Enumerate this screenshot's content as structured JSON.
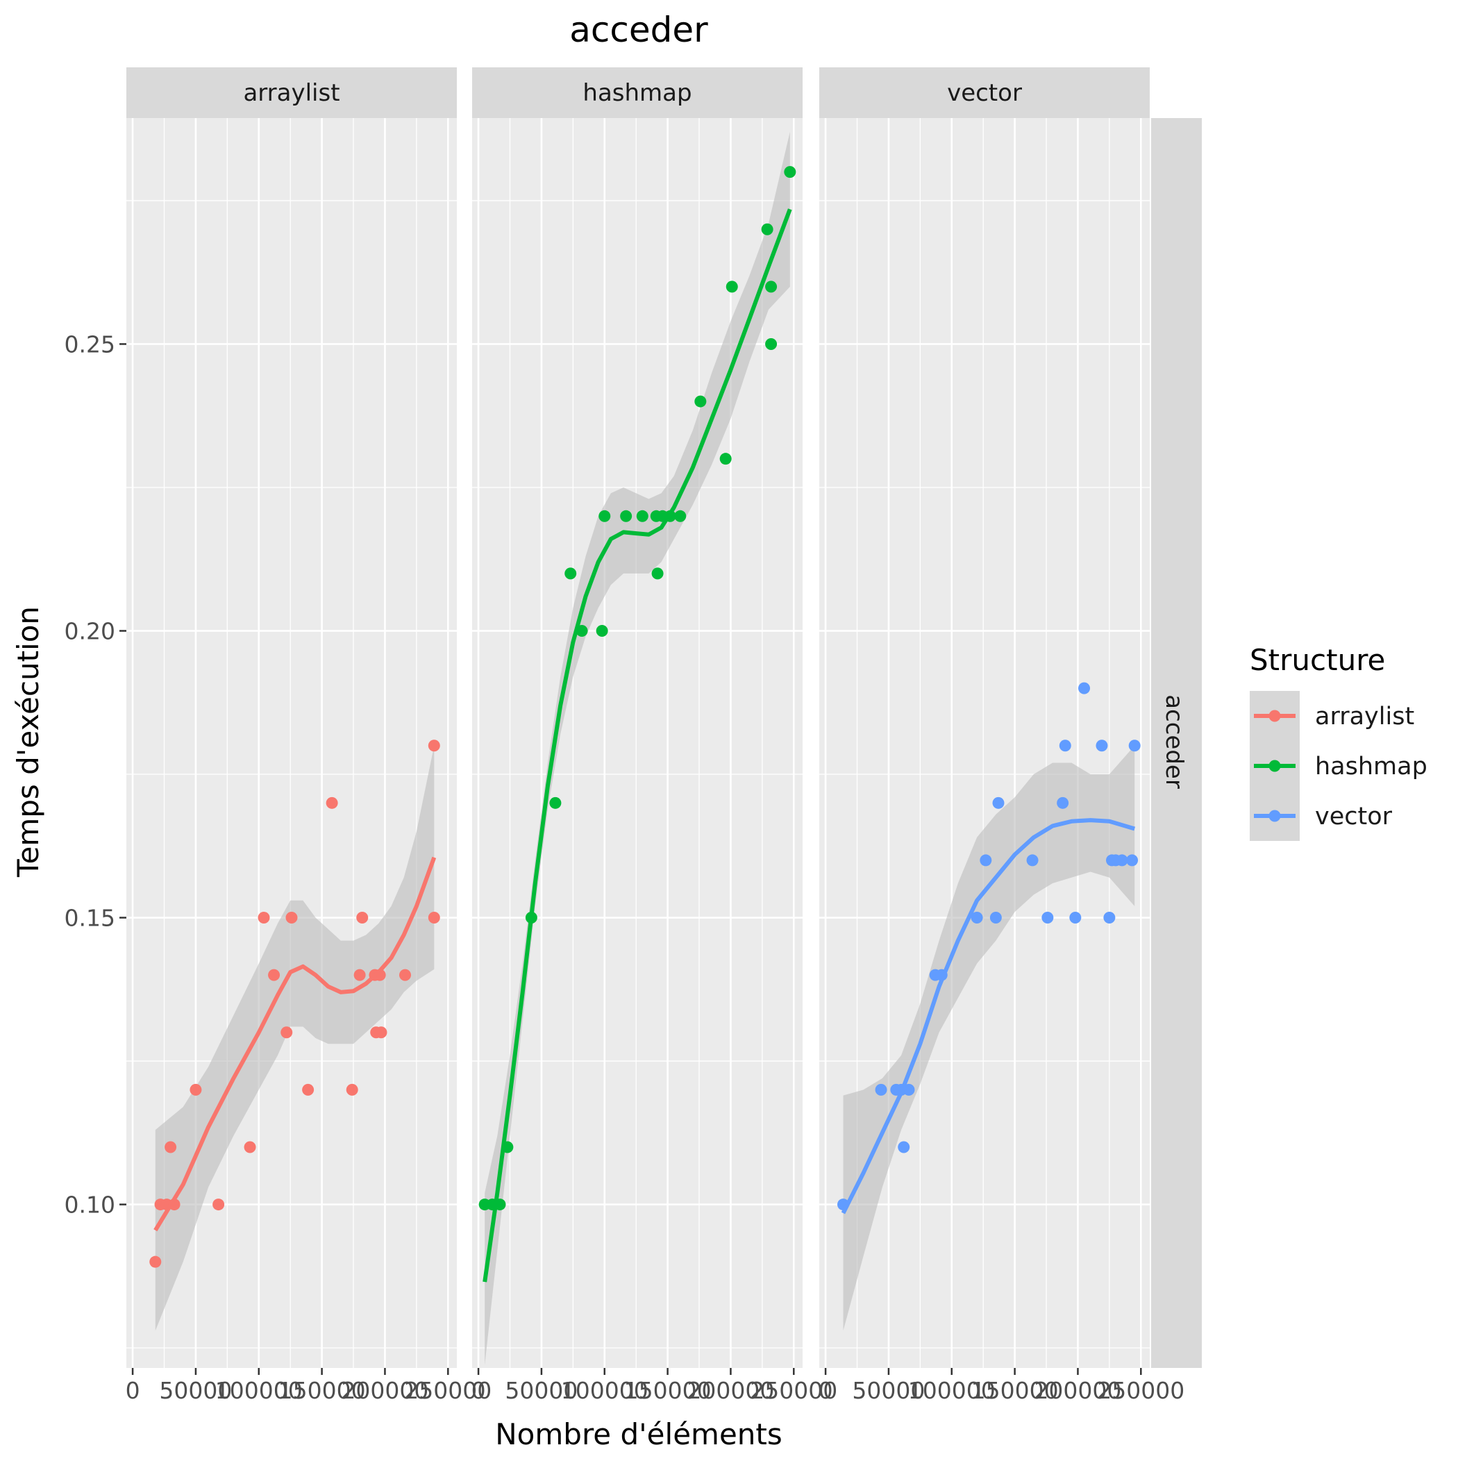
{
  "chart_data": {
    "type": "scatter",
    "title": "acceder",
    "xlabel": "Nombre d'éléments",
    "ylabel": "Temps d'exécution",
    "row_strip": "acceder",
    "xlim": [
      -5000,
      257000
    ],
    "ylim": [
      0.0715,
      0.2894
    ],
    "x_ticks": [
      0,
      50000,
      100000,
      150000,
      200000,
      250000
    ],
    "x_tick_labels": [
      "0",
      "50000",
      "100000",
      "150000",
      "200000",
      "250000"
    ],
    "y_ticks": [
      0.1,
      0.15,
      0.2,
      0.25
    ],
    "y_tick_labels": [
      "0.10",
      "0.15",
      "0.20",
      "0.25"
    ],
    "grid": true,
    "legend": {
      "title": "Structure",
      "position": "right",
      "entries": [
        {
          "label": "arraylist",
          "color": "#F8766D"
        },
        {
          "label": "hashmap",
          "color": "#00BA38"
        },
        {
          "label": "vector",
          "color": "#619CFF"
        }
      ]
    },
    "colors": {
      "panel_bg": "#EBEBEB",
      "strip_bg": "#D9D9D9",
      "grid": "#FFFFFF",
      "ribbon": "#BEBEBE",
      "text": "#1A1A1A",
      "tick_text": "#4D4D4D"
    },
    "panels": [
      {
        "name": "arraylist",
        "color": "#F8766D",
        "points": [
          [
            18000,
            0.09
          ],
          [
            22000,
            0.1
          ],
          [
            27000,
            0.1
          ],
          [
            30000,
            0.11
          ],
          [
            33000,
            0.1
          ],
          [
            50000,
            0.12
          ],
          [
            68000,
            0.1
          ],
          [
            93000,
            0.11
          ],
          [
            104000,
            0.15
          ],
          [
            112000,
            0.14
          ],
          [
            122000,
            0.13
          ],
          [
            126000,
            0.15
          ],
          [
            139000,
            0.12
          ],
          [
            158000,
            0.17
          ],
          [
            174000,
            0.12
          ],
          [
            180000,
            0.14
          ],
          [
            182000,
            0.15
          ],
          [
            192000,
            0.14
          ],
          [
            193000,
            0.13
          ],
          [
            196000,
            0.14
          ],
          [
            197000,
            0.13
          ],
          [
            216000,
            0.14
          ],
          [
            239000,
            0.18
          ],
          [
            239000,
            0.15
          ]
        ],
        "smooth": [
          [
            18000,
            0.0955
          ],
          [
            40000,
            0.1035
          ],
          [
            60000,
            0.1135
          ],
          [
            80000,
            0.122
          ],
          [
            100000,
            0.13
          ],
          [
            115000,
            0.1365
          ],
          [
            125000,
            0.1405
          ],
          [
            135000,
            0.1415
          ],
          [
            145000,
            0.14
          ],
          [
            155000,
            0.138
          ],
          [
            165000,
            0.137
          ],
          [
            175000,
            0.1372
          ],
          [
            185000,
            0.1385
          ],
          [
            195000,
            0.1405
          ],
          [
            205000,
            0.143
          ],
          [
            215000,
            0.147
          ],
          [
            225000,
            0.152
          ],
          [
            239000,
            0.1605
          ]
        ],
        "band_upper": [
          [
            18000,
            0.113
          ],
          [
            40000,
            0.117
          ],
          [
            60000,
            0.124
          ],
          [
            80000,
            0.133
          ],
          [
            100000,
            0.142
          ],
          [
            115000,
            0.149
          ],
          [
            125000,
            0.153
          ],
          [
            135000,
            0.153
          ],
          [
            145000,
            0.15
          ],
          [
            155000,
            0.148
          ],
          [
            165000,
            0.146
          ],
          [
            175000,
            0.146
          ],
          [
            185000,
            0.147
          ],
          [
            195000,
            0.149
          ],
          [
            205000,
            0.152
          ],
          [
            215000,
            0.157
          ],
          [
            225000,
            0.165
          ],
          [
            239000,
            0.18
          ]
        ],
        "band_lower": [
          [
            18000,
            0.078
          ],
          [
            40000,
            0.09
          ],
          [
            60000,
            0.103
          ],
          [
            80000,
            0.112
          ],
          [
            100000,
            0.12
          ],
          [
            115000,
            0.126
          ],
          [
            125000,
            0.131
          ],
          [
            135000,
            0.131
          ],
          [
            145000,
            0.129
          ],
          [
            155000,
            0.128
          ],
          [
            165000,
            0.128
          ],
          [
            175000,
            0.128
          ],
          [
            185000,
            0.13
          ],
          [
            195000,
            0.132
          ],
          [
            205000,
            0.134
          ],
          [
            215000,
            0.137
          ],
          [
            225000,
            0.139
          ],
          [
            239000,
            0.141
          ]
        ]
      },
      {
        "name": "hashmap",
        "color": "#00BA38",
        "points": [
          [
            5000,
            0.1
          ],
          [
            11000,
            0.1
          ],
          [
            17000,
            0.1
          ],
          [
            23000,
            0.11
          ],
          [
            42000,
            0.15
          ],
          [
            61000,
            0.17
          ],
          [
            73000,
            0.21
          ],
          [
            82000,
            0.2
          ],
          [
            98000,
            0.2
          ],
          [
            100000,
            0.22
          ],
          [
            117000,
            0.22
          ],
          [
            130000,
            0.22
          ],
          [
            141000,
            0.22
          ],
          [
            142000,
            0.21
          ],
          [
            146000,
            0.22
          ],
          [
            152000,
            0.22
          ],
          [
            160000,
            0.22
          ],
          [
            176000,
            0.24
          ],
          [
            196000,
            0.23
          ],
          [
            201000,
            0.26
          ],
          [
            229000,
            0.27
          ],
          [
            232000,
            0.26
          ],
          [
            232000,
            0.25
          ],
          [
            247000,
            0.28
          ]
        ],
        "smooth": [
          [
            5000,
            0.0865
          ],
          [
            15000,
            0.102
          ],
          [
            25000,
            0.119
          ],
          [
            35000,
            0.137
          ],
          [
            45000,
            0.156
          ],
          [
            55000,
            0.173
          ],
          [
            65000,
            0.187
          ],
          [
            75000,
            0.198
          ],
          [
            85000,
            0.206
          ],
          [
            95000,
            0.212
          ],
          [
            105000,
            0.216
          ],
          [
            115000,
            0.2172
          ],
          [
            125000,
            0.217
          ],
          [
            135000,
            0.2168
          ],
          [
            145000,
            0.218
          ],
          [
            155000,
            0.2215
          ],
          [
            170000,
            0.2285
          ],
          [
            185000,
            0.237
          ],
          [
            200000,
            0.2455
          ],
          [
            215000,
            0.2545
          ],
          [
            230000,
            0.2635
          ],
          [
            247000,
            0.2735
          ]
        ],
        "band_upper": [
          [
            5000,
            0.102
          ],
          [
            15000,
            0.112
          ],
          [
            25000,
            0.126
          ],
          [
            35000,
            0.142
          ],
          [
            45000,
            0.16
          ],
          [
            55000,
            0.177
          ],
          [
            65000,
            0.192
          ],
          [
            75000,
            0.204
          ],
          [
            85000,
            0.213
          ],
          [
            95000,
            0.22
          ],
          [
            105000,
            0.224
          ],
          [
            115000,
            0.225
          ],
          [
            125000,
            0.224
          ],
          [
            135000,
            0.223
          ],
          [
            145000,
            0.224
          ],
          [
            155000,
            0.227
          ],
          [
            170000,
            0.235
          ],
          [
            185000,
            0.245
          ],
          [
            200000,
            0.254
          ],
          [
            215000,
            0.262
          ],
          [
            230000,
            0.271
          ],
          [
            247000,
            0.287
          ]
        ],
        "band_lower": [
          [
            5000,
            0.072
          ],
          [
            15000,
            0.092
          ],
          [
            25000,
            0.112
          ],
          [
            35000,
            0.132
          ],
          [
            45000,
            0.152
          ],
          [
            55000,
            0.169
          ],
          [
            65000,
            0.182
          ],
          [
            75000,
            0.192
          ],
          [
            85000,
            0.199
          ],
          [
            95000,
            0.204
          ],
          [
            105000,
            0.208
          ],
          [
            115000,
            0.21
          ],
          [
            125000,
            0.21
          ],
          [
            135000,
            0.21
          ],
          [
            145000,
            0.212
          ],
          [
            155000,
            0.216
          ],
          [
            170000,
            0.222
          ],
          [
            185000,
            0.229
          ],
          [
            200000,
            0.237
          ],
          [
            215000,
            0.247
          ],
          [
            230000,
            0.256
          ],
          [
            247000,
            0.26
          ]
        ]
      },
      {
        "name": "vector",
        "color": "#619CFF",
        "points": [
          [
            14000,
            0.1
          ],
          [
            44000,
            0.12
          ],
          [
            56000,
            0.12
          ],
          [
            60000,
            0.12
          ],
          [
            62000,
            0.11
          ],
          [
            66000,
            0.12
          ],
          [
            87000,
            0.14
          ],
          [
            92000,
            0.14
          ],
          [
            120000,
            0.15
          ],
          [
            127000,
            0.16
          ],
          [
            135000,
            0.15
          ],
          [
            137000,
            0.17
          ],
          [
            164000,
            0.16
          ],
          [
            176000,
            0.15
          ],
          [
            188000,
            0.17
          ],
          [
            190000,
            0.18
          ],
          [
            198000,
            0.15
          ],
          [
            205000,
            0.19
          ],
          [
            219000,
            0.18
          ],
          [
            225000,
            0.15
          ],
          [
            227000,
            0.16
          ],
          [
            230000,
            0.16
          ],
          [
            235000,
            0.16
          ],
          [
            243000,
            0.16
          ],
          [
            245000,
            0.18
          ]
        ],
        "smooth": [
          [
            14000,
            0.0985
          ],
          [
            30000,
            0.1055
          ],
          [
            45000,
            0.1125
          ],
          [
            60000,
            0.1195
          ],
          [
            75000,
            0.128
          ],
          [
            90000,
            0.138
          ],
          [
            105000,
            0.146
          ],
          [
            120000,
            0.153
          ],
          [
            135000,
            0.157
          ],
          [
            150000,
            0.161
          ],
          [
            165000,
            0.164
          ],
          [
            180000,
            0.166
          ],
          [
            195000,
            0.1668
          ],
          [
            210000,
            0.167
          ],
          [
            225000,
            0.1668
          ],
          [
            245000,
            0.1655
          ]
        ],
        "band_upper": [
          [
            14000,
            0.119
          ],
          [
            30000,
            0.12
          ],
          [
            45000,
            0.122
          ],
          [
            60000,
            0.126
          ],
          [
            75000,
            0.135
          ],
          [
            90000,
            0.146
          ],
          [
            105000,
            0.156
          ],
          [
            120000,
            0.164
          ],
          [
            135000,
            0.168
          ],
          [
            150000,
            0.171
          ],
          [
            165000,
            0.175
          ],
          [
            180000,
            0.177
          ],
          [
            195000,
            0.177
          ],
          [
            210000,
            0.175
          ],
          [
            225000,
            0.175
          ],
          [
            245000,
            0.18
          ]
        ],
        "band_lower": [
          [
            14000,
            0.078
          ],
          [
            30000,
            0.091
          ],
          [
            45000,
            0.103
          ],
          [
            60000,
            0.113
          ],
          [
            75000,
            0.121
          ],
          [
            90000,
            0.13
          ],
          [
            105000,
            0.136
          ],
          [
            120000,
            0.142
          ],
          [
            135000,
            0.146
          ],
          [
            150000,
            0.151
          ],
          [
            165000,
            0.154
          ],
          [
            180000,
            0.156
          ],
          [
            195000,
            0.157
          ],
          [
            210000,
            0.158
          ],
          [
            225000,
            0.157
          ],
          [
            245000,
            0.152
          ]
        ]
      }
    ]
  }
}
